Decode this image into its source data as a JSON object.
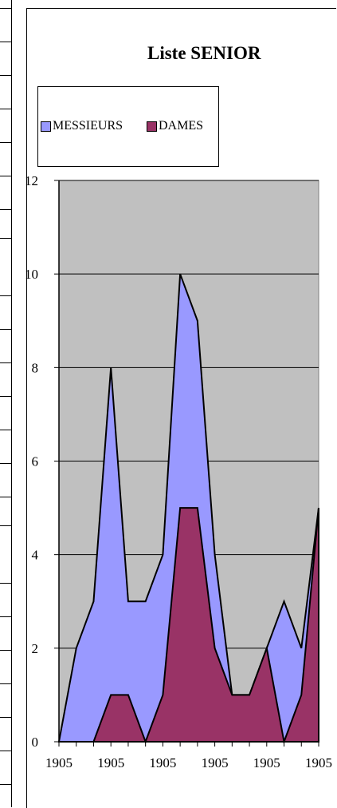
{
  "chart_data": {
    "type": "area",
    "stacked": false,
    "title": "Liste SENIOR",
    "xlabel": "",
    "ylabel": "",
    "ylim": [
      0,
      12
    ],
    "yticks": [
      0,
      2,
      4,
      6,
      8,
      10,
      12
    ],
    "x_tick_labels": [
      "1905",
      "1905",
      "1905",
      "1905",
      "1905",
      "1905"
    ],
    "grid": true,
    "legend_position": "top-left",
    "plot_background": "#c0c0c0",
    "series": [
      {
        "name": "MESSIEURS",
        "color": "#9999ff",
        "values": [
          0,
          2,
          3,
          8,
          3,
          3,
          4,
          10,
          9,
          4,
          1,
          1,
          2,
          3,
          2,
          5
        ]
      },
      {
        "name": "DAMES",
        "color": "#993366",
        "values": [
          0,
          0,
          0,
          1,
          1,
          0,
          1,
          5,
          5,
          2,
          1,
          1,
          2,
          0,
          1,
          5
        ]
      }
    ]
  }
}
